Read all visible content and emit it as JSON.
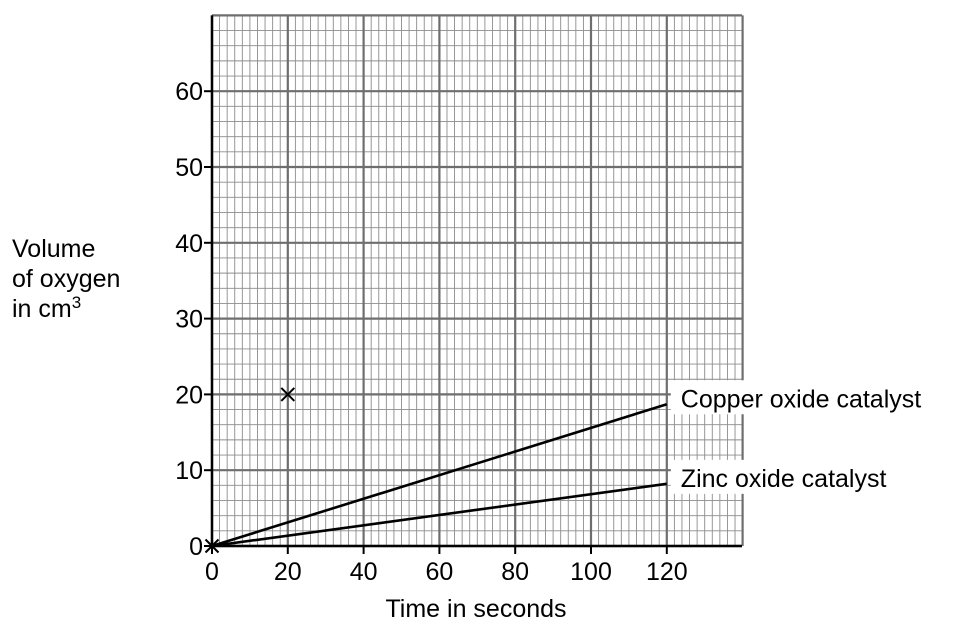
{
  "chart_data": {
    "type": "line",
    "xlabel": "Time in seconds",
    "ylabel": {
      "line1": "Volume",
      "line2": "of oxygen",
      "line3_prefix": "in cm",
      "line3_sup": "3"
    },
    "xlim": [
      0,
      140
    ],
    "ylim": [
      0,
      70
    ],
    "x_ticks": [
      0,
      20,
      40,
      60,
      80,
      100,
      120
    ],
    "y_ticks": [
      0,
      10,
      20,
      30,
      40,
      50,
      60
    ],
    "grid": true,
    "series": [
      {
        "name": "Copper oxide catalyst",
        "x": [
          0,
          120
        ],
        "y": [
          0,
          18.7
        ]
      },
      {
        "name": "Zinc oxide catalyst",
        "x": [
          0,
          120
        ],
        "y": [
          0,
          8.2
        ]
      }
    ],
    "points": [
      {
        "x": 0,
        "y": 0,
        "marker": "x"
      },
      {
        "x": 20,
        "y": 20,
        "marker": "x"
      }
    ]
  }
}
